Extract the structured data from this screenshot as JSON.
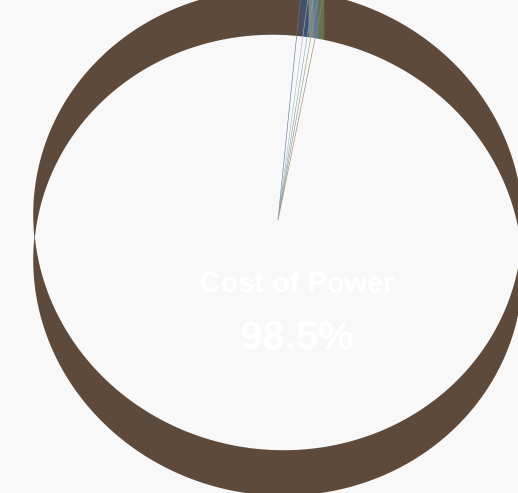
{
  "chart_data": {
    "type": "pie",
    "style": "3d",
    "slices": [
      {
        "label": "Cost of Power",
        "value": 98.5,
        "color": "#876a56",
        "side_color": "#5e4a3b"
      },
      {
        "label": "",
        "value": 0.5,
        "color": "#5b77a2",
        "side_color": "#3f5371"
      },
      {
        "label": "",
        "value": 0.35,
        "color": "#a9b4b8",
        "side_color": "#7c8588"
      },
      {
        "label": "",
        "value": 0.3,
        "color": "#7ea6c6",
        "side_color": "#5a7890"
      },
      {
        "label": "",
        "value": 0.35,
        "color": "#8e9a72",
        "side_color": "#67704f"
      }
    ],
    "labels_shown": [
      {
        "name": "Cost of Power",
        "value_text": "98.5%"
      }
    ],
    "background": "#f8f8f8"
  }
}
